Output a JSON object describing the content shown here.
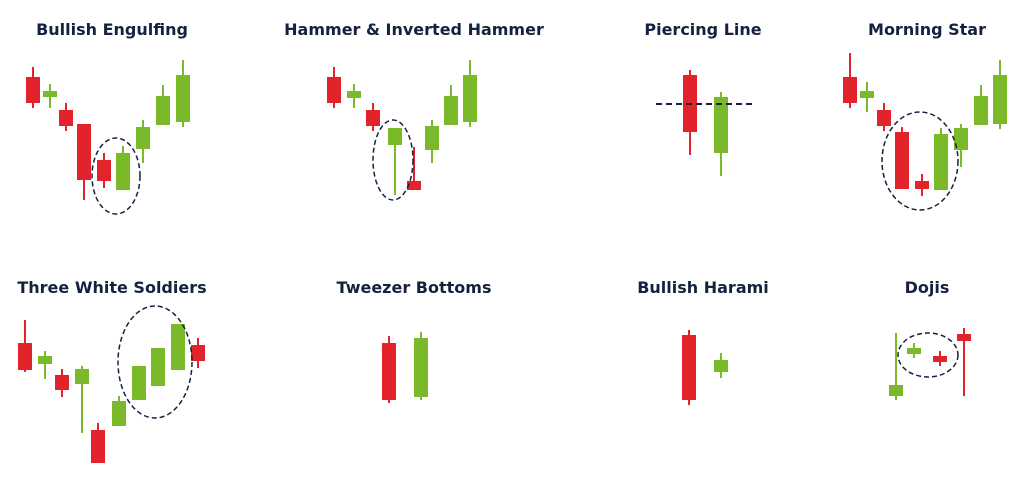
{
  "patterns": [
    {
      "title": "Bullish Engulfing"
    },
    {
      "title": "Hammer & Inverted Hammer"
    },
    {
      "title": "Piercing Line"
    },
    {
      "title": "Morning Star"
    },
    {
      "title": "Three White Soldiers"
    },
    {
      "title": "Tweezer Bottoms"
    },
    {
      "title": "Bullish Harami"
    },
    {
      "title": "Dojis"
    }
  ]
}
